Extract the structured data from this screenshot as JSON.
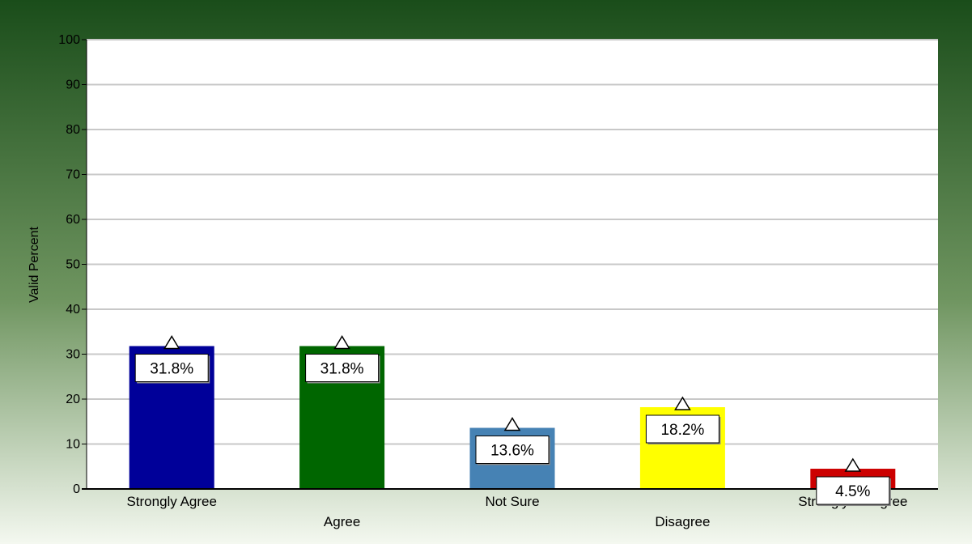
{
  "chart_data": {
    "type": "bar",
    "categories": [
      "Strongly Agree",
      "Agree",
      "Not Sure",
      "Disagree",
      "Strongly Disagree"
    ],
    "values": [
      31.8,
      31.8,
      13.6,
      18.2,
      4.5
    ],
    "data_labels": [
      "31.8%",
      "31.8%",
      "13.6%",
      "18.2%",
      "4.5%"
    ],
    "bar_colors": [
      "#000099",
      "#006600",
      "#4682b4",
      "#ffff00",
      "#cc0000"
    ],
    "title": "",
    "xlabel": "",
    "ylabel": "Valid Percent",
    "ylim": [
      0,
      100
    ],
    "yticks": [
      0,
      10,
      20,
      30,
      40,
      50,
      60,
      70,
      80,
      90,
      100
    ],
    "grid": true,
    "legend": "none",
    "marker": "triangle",
    "background_gradient": [
      "#1a4d1a",
      "#f4f8f0"
    ]
  }
}
